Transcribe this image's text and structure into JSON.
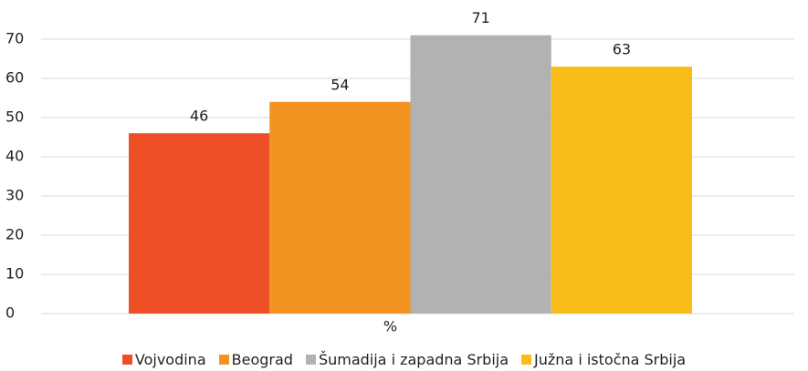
{
  "chart_data": {
    "type": "bar",
    "categories": [
      "%"
    ],
    "series": [
      {
        "name": "Vojvodina",
        "color": "#ee4e26",
        "values": [
          46
        ]
      },
      {
        "name": "Beograd",
        "color": "#f39322",
        "values": [
          54
        ]
      },
      {
        "name": "Šumadija i zapadna Srbija",
        "color": "#b2b2b2",
        "values": [
          71
        ]
      },
      {
        "name": "Južna i istočna Srbija",
        "color": "#f9bd19",
        "values": [
          63
        ]
      }
    ],
    "ylim": [
      0,
      80
    ],
    "yticks": [
      0,
      10,
      20,
      30,
      40,
      50,
      60,
      70
    ],
    "grid": true,
    "legend": "bottom"
  }
}
